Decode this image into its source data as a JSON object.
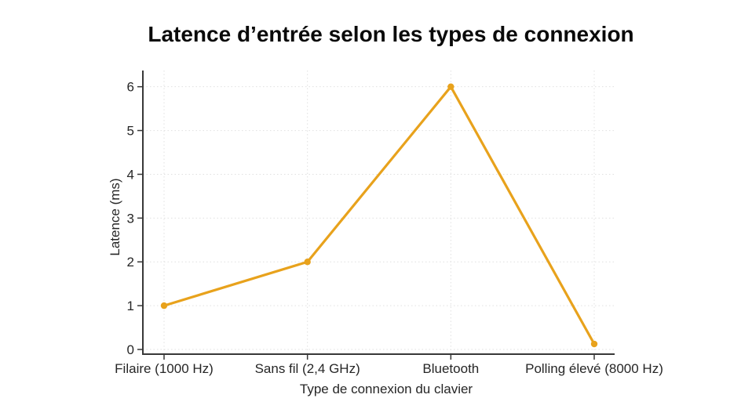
{
  "chart_data": {
    "type": "line",
    "title": "Latence d’entrée selon les types de connexion",
    "xlabel": "Type de connexion du clavier",
    "ylabel": "Latence (ms)",
    "categories": [
      "Filaire (1000 Hz)",
      "Sans fil (2,4 GHz)",
      "Bluetooth",
      "Polling élevé (8000 Hz)"
    ],
    "series": [
      {
        "name": "Latence",
        "values": [
          1,
          2,
          6,
          0.125
        ]
      }
    ],
    "yticks": [
      0,
      1,
      2,
      3,
      4,
      5,
      6
    ],
    "ylim": [
      0,
      6.37
    ],
    "grid": true,
    "legend_position": "none",
    "marker": "circle",
    "colors": {
      "line": "#E8A21C",
      "marker": "#E8A21C",
      "grid": "#E0E0E0",
      "axis": "#383838",
      "tick_label": "#262626",
      "title": "#0A0A0A",
      "background": "#FFFFFF"
    }
  }
}
